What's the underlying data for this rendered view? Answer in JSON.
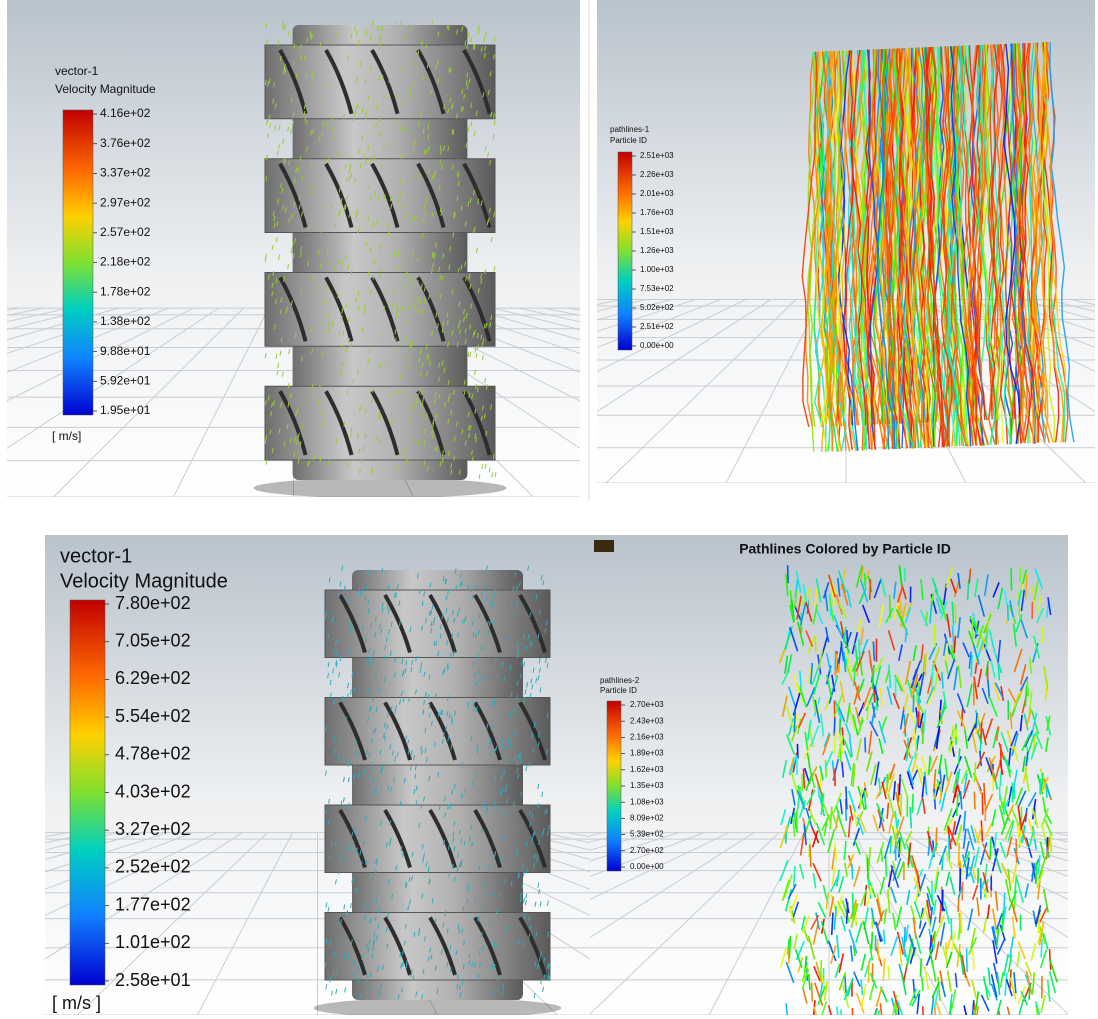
{
  "panels": [
    {
      "legend": {
        "title": "vector-1",
        "quantity": "Velocity Magnitude",
        "ticks": [
          "4.16e+02",
          "3.76e+02",
          "3.37e+02",
          "2.97e+02",
          "2.57e+02",
          "2.18e+02",
          "1.78e+02",
          "1.38e+02",
          "9.88e+01",
          "5.92e+01",
          "1.95e+01"
        ],
        "unit": "[ m/s]"
      }
    },
    {
      "legend": {
        "title": "pathlines-1",
        "quantity": "Particle ID",
        "ticks": [
          "2.51e+03",
          "2.26e+03",
          "2.01e+03",
          "1.76e+03",
          "1.51e+03",
          "1.26e+03",
          "1.00e+03",
          "7.53e+02",
          "5.02e+02",
          "2.51e+02",
          "0.00e+00"
        ]
      }
    },
    {
      "legend": {
        "title": "vector-1",
        "quantity": "Velocity Magnitude",
        "ticks": [
          "7.80e+02",
          "7.05e+02",
          "6.29e+02",
          "5.54e+02",
          "4.78e+02",
          "4.03e+02",
          "3.27e+02",
          "2.52e+02",
          "1.77e+02",
          "1.01e+02",
          "2.58e+01"
        ],
        "unit": "[ m/s ]"
      }
    },
    {
      "title": "Pathlines Colored by Particle ID",
      "legend": {
        "title": "pathlines-2",
        "quantity": "Particle ID",
        "ticks": [
          "2.70e+03",
          "2.43e+03",
          "2.16e+03",
          "1.89e+03",
          "1.62e+03",
          "1.35e+03",
          "1.08e+03",
          "8.09e+02",
          "5.39e+02",
          "2.70e+02",
          "0.00e+00"
        ]
      }
    }
  ]
}
